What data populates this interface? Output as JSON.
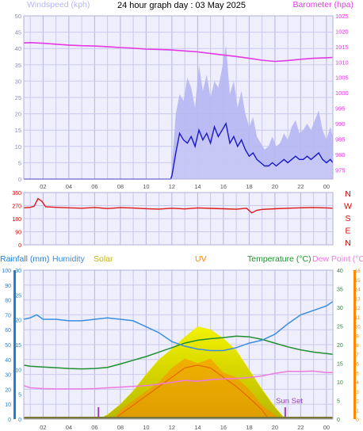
{
  "colors": {
    "plot_bg": "#eeeefc",
    "grid": "#c9c9ee",
    "grid_dark": "#b5b5dd",
    "windspeed": "#1818c8",
    "gust": "#b6b6f4",
    "barometer": "#e33ae3",
    "winddir": "#e01818",
    "compass": "#d60000",
    "rain_axis": "#1f7fd8",
    "humidity": "#3a8ee0",
    "solar": "#e8e800",
    "uv": "#ff8800",
    "temperature": "#1f8f30",
    "dewpoint": "#ee7ae0",
    "sunset": "#9a40c0",
    "axis_text": "#555555"
  },
  "chart_data": [
    {
      "type": "line",
      "title": "24 hour graph day : 03 May 2025",
      "left_axis_label": "Windspeed (kph)",
      "right_axis_label": "Barometer (hpa)",
      "x_labels": [
        "02",
        "04",
        "06",
        "08",
        "10",
        "12",
        "14",
        "16",
        "18",
        "20",
        "22",
        "00"
      ],
      "x_ticks": [
        2,
        4,
        6,
        8,
        10,
        12,
        14,
        16,
        18,
        20,
        22,
        24
      ],
      "x_range": [
        0.5,
        24.5
      ],
      "left_ylim": [
        0,
        50
      ],
      "left_ticks": [
        0,
        5,
        10,
        15,
        20,
        25,
        30,
        35,
        40,
        45,
        50
      ],
      "right_ylim": [
        972,
        1025
      ],
      "right_ticks": [
        975,
        980,
        985,
        990,
        995,
        1000,
        1005,
        1010,
        1015,
        1020,
        1025
      ],
      "series": [
        {
          "name": "Barometer (hpa)",
          "axis": "right",
          "x": [
            0.5,
            1,
            2,
            3,
            4,
            5,
            6,
            7,
            8,
            9,
            10,
            11,
            12,
            13,
            14,
            15,
            16,
            17,
            18,
            19,
            20,
            21,
            22,
            23,
            24,
            24.5
          ],
          "y": [
            1016.2,
            1016.3,
            1016.1,
            1015.8,
            1015.5,
            1015.3,
            1015.2,
            1015.0,
            1014.7,
            1014.5,
            1014.2,
            1014.1,
            1013.9,
            1013.6,
            1013.3,
            1012.8,
            1012.3,
            1011.8,
            1011.2,
            1010.6,
            1010.2,
            1010.5,
            1010.9,
            1011.2,
            1011.4,
            1011.5
          ]
        },
        {
          "name": "Windspeed",
          "axis": "left",
          "x": [
            0.5,
            11.9,
            12.0,
            12.3,
            12.6,
            12.9,
            13.2,
            13.5,
            13.8,
            14.1,
            14.4,
            14.7,
            15.0,
            15.3,
            15.6,
            15.9,
            16.2,
            16.5,
            16.8,
            17.1,
            17.4,
            17.7,
            18.0,
            18.3,
            18.6,
            18.9,
            19.2,
            19.5,
            19.8,
            20.1,
            20.4,
            20.7,
            21.0,
            21.3,
            21.6,
            21.9,
            22.2,
            22.5,
            22.8,
            23.1,
            23.4,
            23.7,
            24.0,
            24.3,
            24.5
          ],
          "y": [
            0,
            0,
            1,
            8,
            14,
            12,
            11,
            13,
            10,
            15,
            12,
            14,
            11,
            16,
            13,
            15,
            17,
            11,
            13,
            10,
            12,
            9,
            7,
            8,
            6,
            5,
            4,
            4,
            5,
            4,
            5,
            6,
            5,
            6,
            7,
            6,
            6,
            7,
            6,
            7,
            8,
            6,
            5,
            6,
            5
          ]
        },
        {
          "name": "Gust",
          "axis": "left",
          "x": [
            0.5,
            11.9,
            12.0,
            12.3,
            12.6,
            12.9,
            13.2,
            13.5,
            13.8,
            14.1,
            14.4,
            14.7,
            15.0,
            15.3,
            15.6,
            15.9,
            16.2,
            16.5,
            16.8,
            17.1,
            17.4,
            17.7,
            18.0,
            18.3,
            18.6,
            18.9,
            19.2,
            19.5,
            19.8,
            20.1,
            20.4,
            20.7,
            21.0,
            21.3,
            21.6,
            21.9,
            22.2,
            22.5,
            22.8,
            23.1,
            23.4,
            23.7,
            24.0,
            24.3,
            24.5
          ],
          "y": [
            0,
            0,
            4,
            20,
            26,
            24,
            31,
            28,
            22,
            35,
            27,
            32,
            25,
            30,
            28,
            34,
            41,
            26,
            30,
            22,
            27,
            20,
            16,
            19,
            13,
            11,
            9,
            10,
            13,
            10,
            11,
            14,
            12,
            16,
            18,
            14,
            15,
            17,
            15,
            18,
            21,
            15,
            12,
            16,
            13
          ]
        }
      ]
    },
    {
      "type": "line",
      "title": "",
      "left_ylim": [
        0,
        360
      ],
      "left_ticks": [
        0,
        90,
        180,
        270,
        360
      ],
      "compass_labels": [
        "N",
        "W",
        "S",
        "E",
        "N"
      ],
      "series": [
        {
          "name": "Wind direction",
          "axis": "left",
          "x": [
            0.5,
            1.0,
            1.3,
            1.6,
            1.9,
            2.2,
            3,
            4,
            5,
            6,
            7,
            8,
            9,
            10,
            11,
            12,
            13,
            14,
            15,
            16,
            17,
            17.8,
            18.2,
            18.6,
            19,
            20,
            21,
            22,
            23,
            24,
            24.5
          ],
          "y": [
            255,
            258,
            265,
            318,
            300,
            262,
            258,
            255,
            252,
            257,
            250,
            256,
            253,
            249,
            246,
            252,
            247,
            254,
            251,
            248,
            245,
            252,
            220,
            238,
            244,
            248,
            252,
            255,
            257,
            254,
            252
          ]
        }
      ]
    },
    {
      "type": "line",
      "title": "",
      "legend": [
        "Rainfall (mm)",
        "Humidity",
        "Solar",
        "UV",
        "Temperature (°C)",
        "Dew Point (°C)"
      ],
      "rain_ylim": [
        0,
        30
      ],
      "rain_ticks": [
        0,
        5,
        10,
        15,
        20,
        25,
        30
      ],
      "pct_ylim": [
        0,
        100
      ],
      "pct_ticks": [
        0,
        10,
        20,
        30,
        40,
        50,
        60,
        70,
        80,
        90,
        100
      ],
      "temp_ylim": [
        0,
        40
      ],
      "temp_ticks": [
        0,
        5,
        10,
        15,
        20,
        25,
        30,
        35,
        40
      ],
      "uv_ylim": [
        0,
        16
      ],
      "uv_ticks": [
        0,
        1,
        2,
        3,
        4,
        5,
        6,
        7,
        8,
        9,
        10,
        11,
        12,
        13,
        14,
        15,
        16
      ],
      "annotation": "Sun Set",
      "event_markers_x": [
        6.3,
        20.8
      ],
      "series": [
        {
          "name": "Humidity",
          "axis": "pct",
          "x": [
            0.5,
            1,
            1.5,
            2,
            3,
            4,
            5,
            6,
            7,
            8,
            9,
            10,
            11,
            12,
            13,
            14,
            15,
            16,
            17,
            18,
            19,
            20,
            21,
            22,
            23,
            24,
            24.5
          ],
          "y": [
            67,
            68,
            70,
            67,
            67,
            66,
            66,
            67,
            68,
            67,
            66,
            62,
            58,
            52,
            49,
            47,
            46,
            46,
            48,
            51,
            53,
            57,
            64,
            70,
            73,
            76,
            79
          ]
        },
        {
          "name": "Temperature (°C)",
          "axis": "temp",
          "x": [
            0.5,
            1,
            2,
            3,
            4,
            5,
            6,
            7,
            8,
            9,
            10,
            11,
            12,
            13,
            14,
            15,
            16,
            17,
            18,
            19,
            20,
            21,
            22,
            23,
            24,
            24.5
          ],
          "y": [
            14.5,
            14.2,
            14.0,
            13.8,
            13.6,
            13.5,
            13.6,
            13.9,
            14.8,
            15.8,
            16.8,
            18.0,
            19.2,
            20.4,
            21.2,
            21.6,
            21.9,
            22.3,
            22.1,
            21.4,
            20.4,
            19.4,
            18.6,
            18.0,
            17.6,
            17.4
          ]
        },
        {
          "name": "Dew Point (°C)",
          "axis": "temp",
          "x": [
            0.5,
            1,
            2,
            3,
            4,
            5,
            6,
            7,
            8,
            9,
            10,
            11,
            12,
            13,
            14,
            15,
            16,
            17,
            18,
            19,
            20,
            21,
            22,
            23,
            24,
            24.5
          ],
          "y": [
            9.0,
            8.4,
            8.2,
            8.1,
            8.1,
            8.1,
            8.2,
            8.4,
            8.6,
            8.8,
            9.0,
            9.4,
            9.9,
            10.4,
            10.2,
            10.6,
            10.8,
            10.9,
            11.2,
            11.6,
            12.3,
            12.8,
            12.8,
            12.9,
            12.5,
            12.5
          ]
        },
        {
          "name": "Solar",
          "axis": "pct",
          "x": [
            6.3,
            7,
            8,
            9,
            10,
            11,
            12,
            13,
            14,
            15,
            16,
            17,
            18,
            19,
            20,
            20.8
          ],
          "y": [
            0,
            3,
            10,
            19,
            30,
            40,
            47,
            55,
            62,
            60,
            54,
            46,
            33,
            20,
            8,
            0
          ]
        },
        {
          "name": "UV",
          "axis": "uv",
          "x": [
            7.5,
            8,
            9,
            10,
            11,
            12,
            13,
            14,
            15,
            16,
            17,
            18,
            19,
            19.5
          ],
          "y": [
            0,
            0.5,
            1.5,
            2.5,
            3.5,
            4.5,
            5.5,
            5.8,
            5.5,
            4.5,
            3.5,
            2.3,
            1,
            0
          ]
        },
        {
          "name": "UV Peak",
          "axis": "uv",
          "x": [
            7.5,
            8,
            9,
            10,
            11,
            12,
            13,
            14,
            15,
            16,
            17,
            18,
            19,
            20,
            20.5
          ],
          "y": [
            0,
            1,
            2,
            3,
            4,
            5.5,
            6.5,
            6.0,
            6.5,
            5,
            4.5,
            3.2,
            1.5,
            0.5,
            0
          ]
        },
        {
          "name": "Rainfall (mm)",
          "axis": "rain",
          "x": [
            0.5,
            24.5
          ],
          "y": [
            0,
            0
          ]
        }
      ]
    }
  ]
}
